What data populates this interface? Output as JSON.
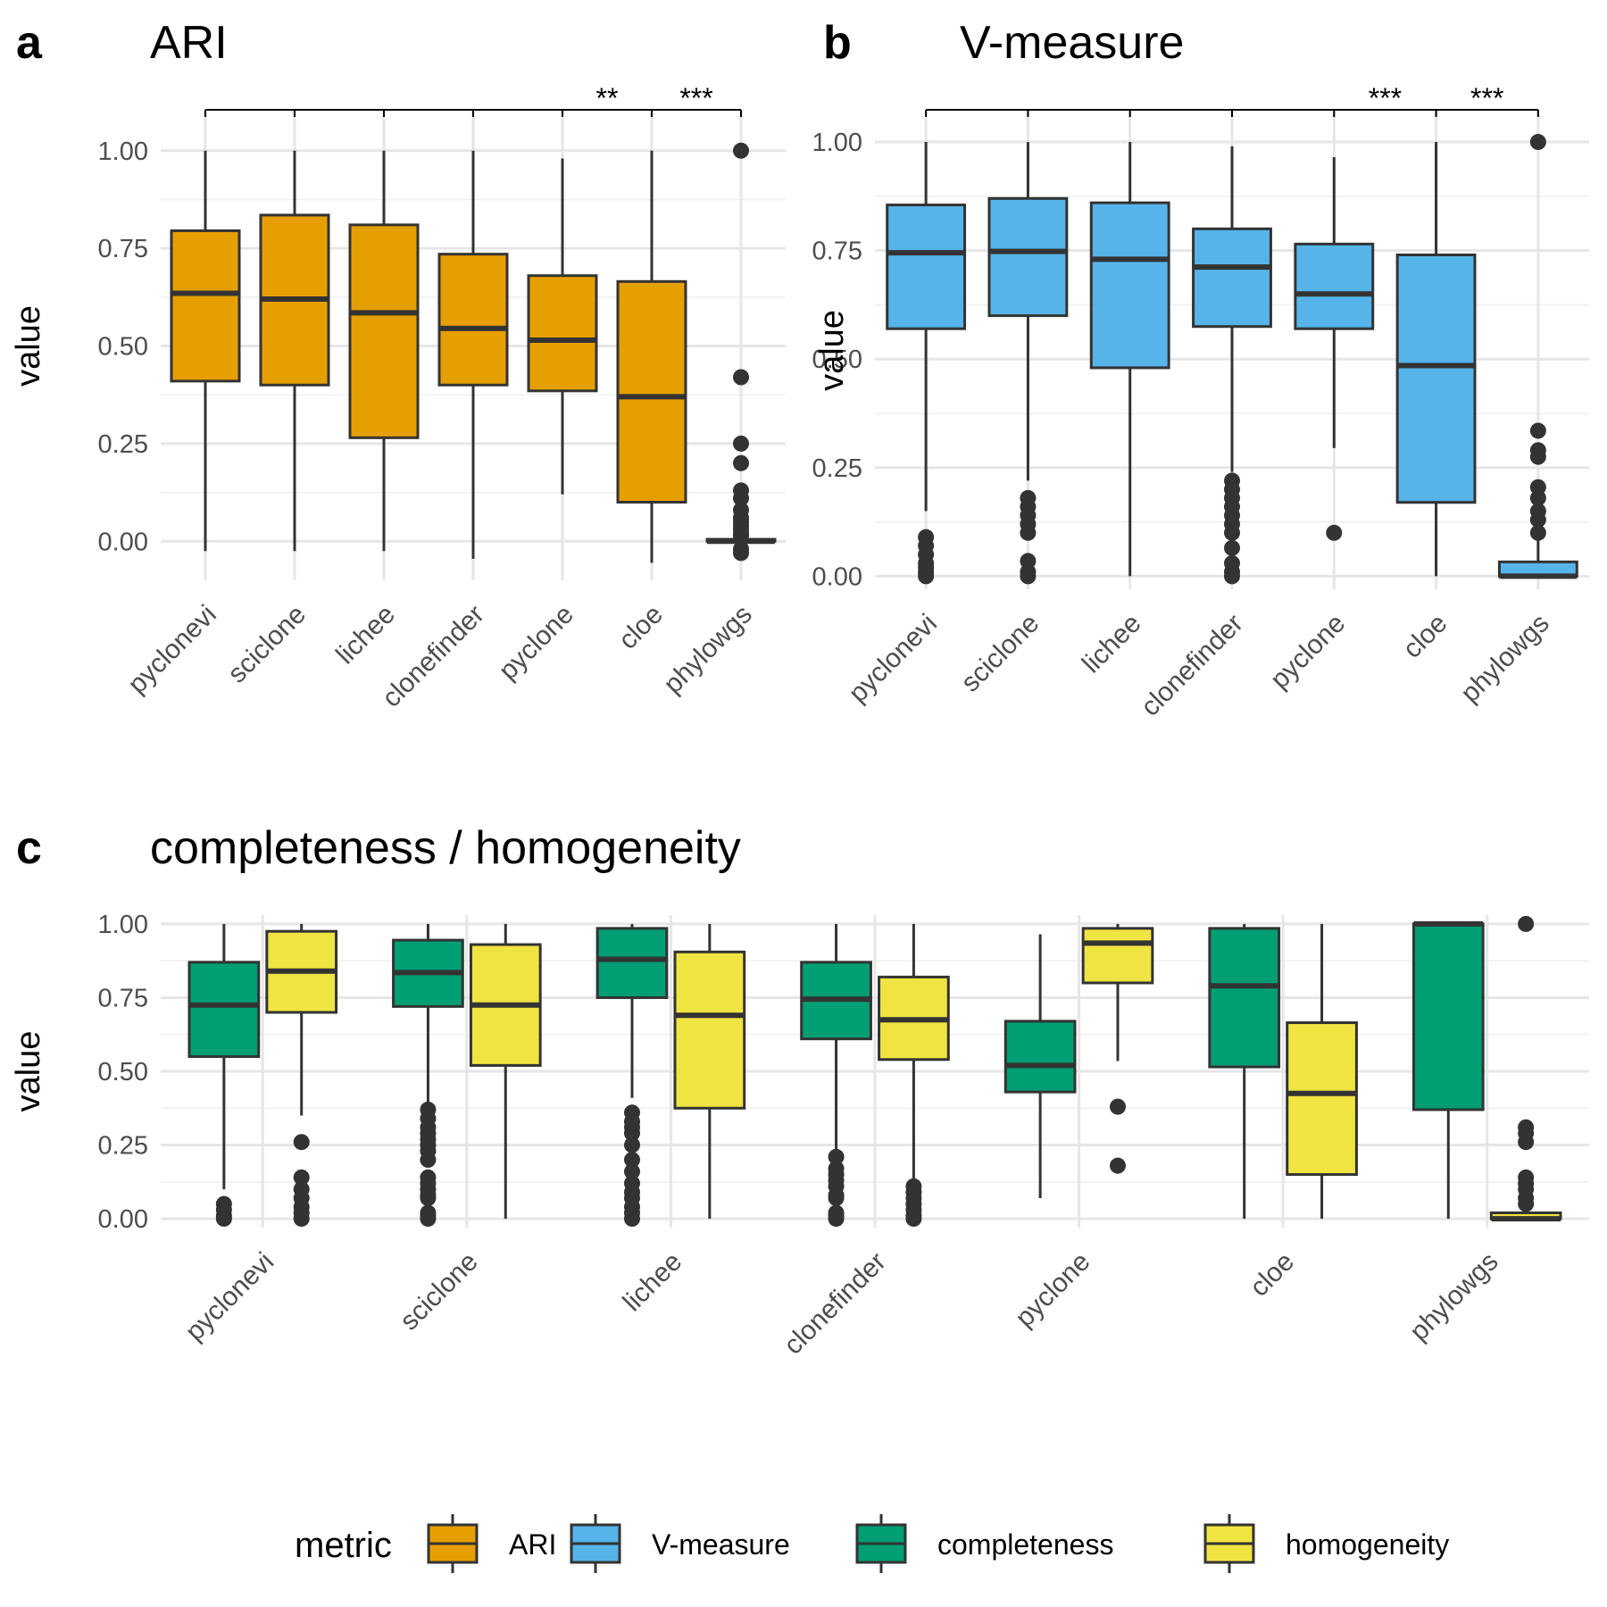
{
  "panels": {
    "a": {
      "letter": "a",
      "title": "ARI"
    },
    "b": {
      "letter": "b",
      "title": "V-measure"
    },
    "c": {
      "letter": "c",
      "title": "completeness / homogeneity"
    }
  },
  "legend": {
    "title": "metric",
    "items": [
      {
        "label": "ARI",
        "color": "#E69F00"
      },
      {
        "label": "V-measure",
        "color": "#56B4E9"
      },
      {
        "label": "completeness",
        "color": "#009E73"
      },
      {
        "label": "homogeneity",
        "color": "#F0E442"
      }
    ]
  },
  "chart_data": [
    {
      "id": "a",
      "type": "boxplot",
      "title": "ARI",
      "xlabel": "",
      "ylabel": "value",
      "ylim": [
        -0.1,
        1.1
      ],
      "yticks": [
        0.0,
        0.25,
        0.5,
        0.75,
        1.0
      ],
      "ytick_labels": [
        "0.00",
        "0.25",
        "0.50",
        "0.75",
        "1.00"
      ],
      "grid": true,
      "fill": "#E69F00",
      "categories": [
        "pyclonevi",
        "sciclone",
        "lichee",
        "clonefinder",
        "pyclone",
        "cloe",
        "phylowgs"
      ],
      "boxes": [
        {
          "category": "pyclonevi",
          "min": -0.025,
          "q1": 0.41,
          "median": 0.635,
          "q3": 0.795,
          "max": 1.0,
          "outliers": []
        },
        {
          "category": "sciclone",
          "min": -0.025,
          "q1": 0.4,
          "median": 0.62,
          "q3": 0.835,
          "max": 1.0,
          "outliers": []
        },
        {
          "category": "lichee",
          "min": -0.025,
          "q1": 0.265,
          "median": 0.585,
          "q3": 0.81,
          "max": 1.0,
          "outliers": []
        },
        {
          "category": "clonefinder",
          "min": -0.045,
          "q1": 0.4,
          "median": 0.545,
          "q3": 0.735,
          "max": 1.0,
          "outliers": []
        },
        {
          "category": "pyclone",
          "min": 0.12,
          "q1": 0.385,
          "median": 0.515,
          "q3": 0.68,
          "max": 0.98,
          "outliers": []
        },
        {
          "category": "cloe",
          "min": -0.055,
          "q1": 0.1,
          "median": 0.37,
          "q3": 0.665,
          "max": 1.0,
          "outliers": []
        },
        {
          "category": "phylowgs",
          "min": -0.01,
          "q1": 0.0,
          "median": 0.0,
          "q3": 0.005,
          "max": 0.01,
          "outliers": [
            1.0,
            0.42,
            0.25,
            0.2,
            0.13,
            0.11,
            0.08,
            0.06,
            0.05,
            0.04,
            0.03,
            0.02,
            0.015,
            -0.02,
            -0.03
          ]
        }
      ],
      "significance": {
        "line_from": "pyclonevi",
        "line_to": "phylowgs",
        "labels": [
          {
            "between": [
              "pyclone",
              "cloe"
            ],
            "text": "**"
          },
          {
            "between": [
              "cloe",
              "phylowgs"
            ],
            "text": "***"
          }
        ]
      }
    },
    {
      "id": "b",
      "type": "boxplot",
      "title": "V-measure",
      "xlabel": "",
      "ylabel": "value",
      "ylim": [
        -0.03,
        1.07
      ],
      "yticks": [
        0.0,
        0.25,
        0.5,
        0.75,
        1.0
      ],
      "ytick_labels": [
        "0.00",
        "0.25",
        "0.50",
        "0.75",
        "1.00"
      ],
      "grid": true,
      "fill": "#56B4E9",
      "categories": [
        "pyclonevi",
        "sciclone",
        "lichee",
        "clonefinder",
        "pyclone",
        "cloe",
        "phylowgs"
      ],
      "boxes": [
        {
          "category": "pyclonevi",
          "min": 0.15,
          "q1": 0.57,
          "median": 0.745,
          "q3": 0.855,
          "max": 1.0,
          "outliers": [
            0.09,
            0.07,
            0.05,
            0.03,
            0.02,
            0.01,
            0.005,
            0.0
          ]
        },
        {
          "category": "sciclone",
          "min": 0.22,
          "q1": 0.6,
          "median": 0.748,
          "q3": 0.87,
          "max": 1.0,
          "outliers": [
            0.18,
            0.16,
            0.14,
            0.12,
            0.1,
            0.035,
            0.01,
            0.0
          ]
        },
        {
          "category": "lichee",
          "min": 0.0,
          "q1": 0.48,
          "median": 0.73,
          "q3": 0.86,
          "max": 1.0,
          "outliers": []
        },
        {
          "category": "clonefinder",
          "min": 0.24,
          "q1": 0.575,
          "median": 0.712,
          "q3": 0.8,
          "max": 0.99,
          "outliers": [
            0.22,
            0.2,
            0.18,
            0.16,
            0.14,
            0.12,
            0.1,
            0.065,
            0.03,
            0.01,
            0.0
          ]
        },
        {
          "category": "pyclone",
          "min": 0.295,
          "q1": 0.57,
          "median": 0.65,
          "q3": 0.765,
          "max": 0.965,
          "outliers": [
            0.1
          ]
        },
        {
          "category": "cloe",
          "min": 0.0,
          "q1": 0.17,
          "median": 0.485,
          "q3": 0.74,
          "max": 1.0,
          "outliers": []
        },
        {
          "category": "phylowgs",
          "min": 0.0,
          "q1": 0.0,
          "median": 0.0,
          "q3": 0.033,
          "max": 0.085,
          "outliers": [
            1.0,
            0.335,
            0.29,
            0.275,
            0.205,
            0.18,
            0.15,
            0.13,
            0.1
          ]
        }
      ],
      "significance": {
        "line_from": "pyclonevi",
        "line_to": "phylowgs",
        "labels": [
          {
            "between": [
              "pyclone",
              "cloe"
            ],
            "text": "***"
          },
          {
            "between": [
              "cloe",
              "phylowgs"
            ],
            "text": "***"
          }
        ]
      }
    },
    {
      "id": "c",
      "type": "boxplot",
      "title": "completeness / homogeneity",
      "xlabel": "",
      "ylabel": "value",
      "ylim": [
        -0.03,
        1.03
      ],
      "yticks": [
        0.0,
        0.25,
        0.5,
        0.75,
        1.0
      ],
      "ytick_labels": [
        "0.00",
        "0.25",
        "0.50",
        "0.75",
        "1.00"
      ],
      "grid": true,
      "categories": [
        "pyclonevi",
        "sciclone",
        "lichee",
        "clonefinder",
        "pyclone",
        "cloe",
        "phylowgs"
      ],
      "series": [
        {
          "name": "completeness",
          "fill": "#009E73",
          "boxes": [
            {
              "category": "pyclonevi",
              "min": 0.1,
              "q1": 0.55,
              "median": 0.725,
              "q3": 0.87,
              "max": 1.0,
              "outliers": [
                0.05,
                0.03,
                0.01,
                0.0
              ]
            },
            {
              "category": "sciclone",
              "min": 0.38,
              "q1": 0.72,
              "median": 0.835,
              "q3": 0.945,
              "max": 1.0,
              "outliers": [
                0.37,
                0.34,
                0.31,
                0.29,
                0.27,
                0.25,
                0.23,
                0.2,
                0.14,
                0.12,
                0.1,
                0.08,
                0.07,
                0.02,
                0.01,
                0.0
              ]
            },
            {
              "category": "lichee",
              "min": 0.41,
              "q1": 0.75,
              "median": 0.88,
              "q3": 0.985,
              "max": 1.0,
              "outliers": [
                0.36,
                0.33,
                0.31,
                0.29,
                0.25,
                0.2,
                0.16,
                0.12,
                0.09,
                0.07,
                0.04,
                0.02,
                0.0
              ]
            },
            {
              "category": "clonefinder",
              "min": 0.22,
              "q1": 0.61,
              "median": 0.745,
              "q3": 0.87,
              "max": 1.0,
              "outliers": [
                0.21,
                0.17,
                0.15,
                0.13,
                0.11,
                0.08,
                0.07,
                0.02,
                0.01,
                0.0
              ]
            },
            {
              "category": "pyclone",
              "min": 0.07,
              "q1": 0.43,
              "median": 0.52,
              "q3": 0.67,
              "max": 0.965,
              "outliers": []
            },
            {
              "category": "cloe",
              "min": 0.0,
              "q1": 0.515,
              "median": 0.79,
              "q3": 0.985,
              "max": 1.0,
              "outliers": []
            },
            {
              "category": "phylowgs",
              "min": 0.0,
              "q1": 0.37,
              "median": 1.0,
              "q3": 1.0,
              "max": 1.0,
              "outliers": []
            }
          ]
        },
        {
          "name": "homogeneity",
          "fill": "#F0E442",
          "boxes": [
            {
              "category": "pyclonevi",
              "min": 0.35,
              "q1": 0.7,
              "median": 0.84,
              "q3": 0.975,
              "max": 1.0,
              "outliers": [
                0.26,
                0.14,
                0.1,
                0.07,
                0.04,
                0.02,
                0.0
              ]
            },
            {
              "category": "sciclone",
              "min": 0.0,
              "q1": 0.52,
              "median": 0.725,
              "q3": 0.93,
              "max": 1.0,
              "outliers": []
            },
            {
              "category": "lichee",
              "min": 0.0,
              "q1": 0.375,
              "median": 0.69,
              "q3": 0.905,
              "max": 1.0,
              "outliers": []
            },
            {
              "category": "clonefinder",
              "min": 0.12,
              "q1": 0.54,
              "median": 0.675,
              "q3": 0.82,
              "max": 1.0,
              "outliers": [
                0.11,
                0.09,
                0.07,
                0.05,
                0.03,
                0.01,
                0.0
              ]
            },
            {
              "category": "pyclone",
              "min": 0.535,
              "q1": 0.8,
              "median": 0.935,
              "q3": 0.985,
              "max": 1.0,
              "outliers": [
                0.38,
                0.18
              ]
            },
            {
              "category": "cloe",
              "min": 0.0,
              "q1": 0.15,
              "median": 0.425,
              "q3": 0.665,
              "max": 1.0,
              "outliers": []
            },
            {
              "category": "phylowgs",
              "min": 0.0,
              "q1": 0.0,
              "median": 0.0,
              "q3": 0.02,
              "max": 0.04,
              "outliers": [
                1.0,
                0.31,
                0.29,
                0.26,
                0.14,
                0.12,
                0.1,
                0.07,
                0.05
              ]
            }
          ]
        }
      ]
    }
  ]
}
